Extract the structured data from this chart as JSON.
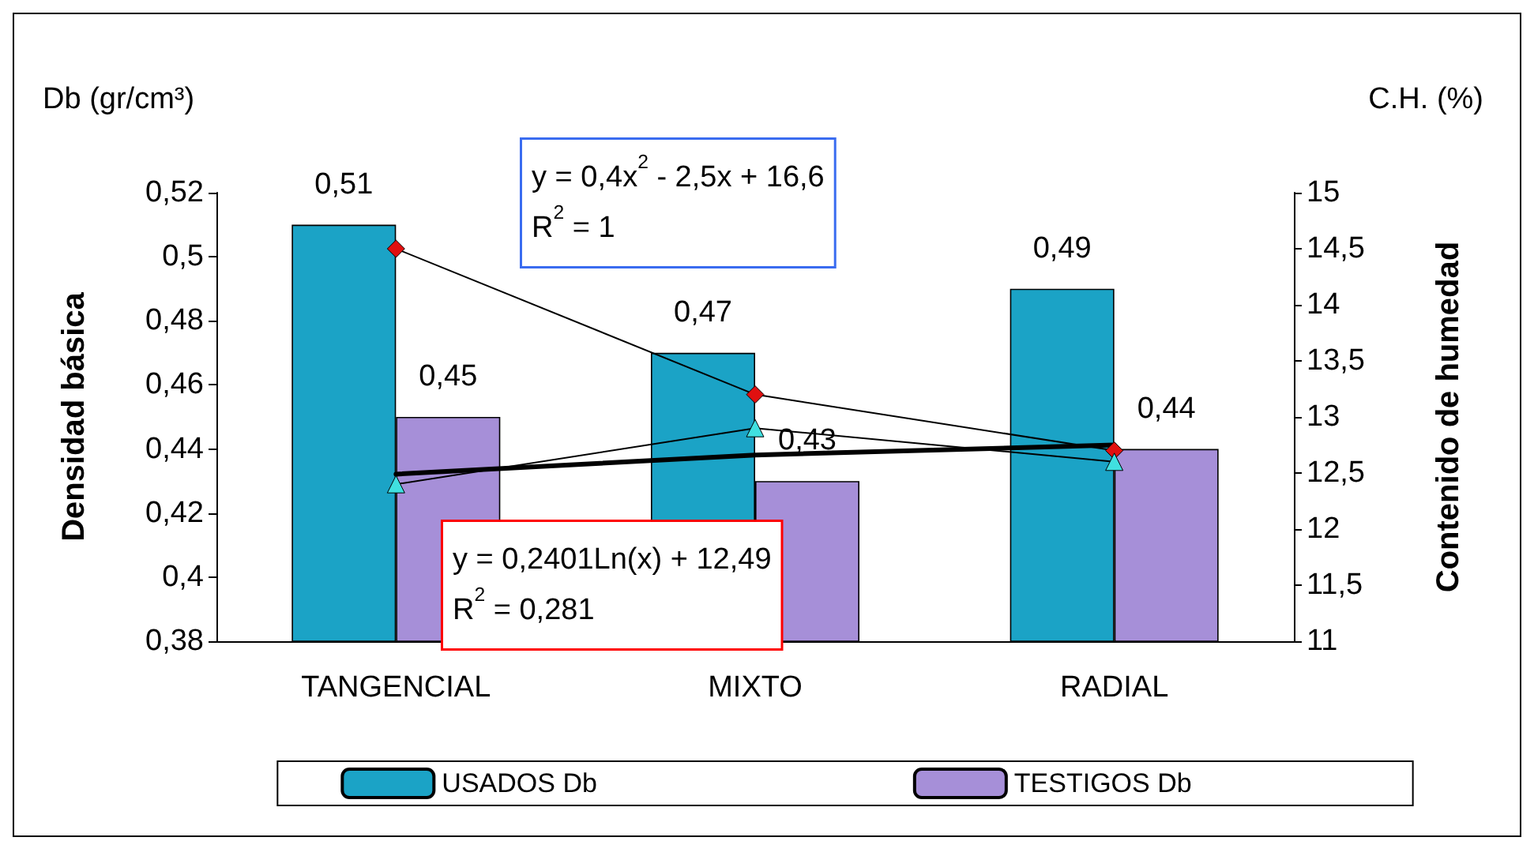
{
  "chart_data": {
    "type": "bar",
    "categories": [
      "TANGENCIAL",
      "MIXTO",
      "RADIAL"
    ],
    "series": [
      {
        "name": "USADOS Db",
        "color": "#1ba3c6",
        "values": [
          0.51,
          0.47,
          0.49
        ],
        "value_labels": [
          "0,51",
          "0,47",
          "0,49"
        ]
      },
      {
        "name": "TESTIGOS Db",
        "color": "#a68fd8",
        "values": [
          0.45,
          0.43,
          0.44
        ],
        "value_labels": [
          "0,45",
          "0,43",
          "0,44"
        ]
      },
      {
        "type": "line",
        "axis": "y2",
        "color": "#000000",
        "colors": [
          "#e01010",
          "#e01010",
          "#e01010"
        ],
        "marker": "diamond",
        "values": [
          14.5,
          13.2,
          12.7
        ]
      },
      {
        "type": "line",
        "axis": "y2",
        "color": "#000000",
        "colors": [
          "#40e0e0",
          "#40e0e0",
          "#40e0e0"
        ],
        "marker": "triangle",
        "values": [
          12.4,
          12.9,
          12.6
        ]
      },
      {
        "type": "line",
        "axis": "y2",
        "color": "#000000",
        "marker": "none",
        "values": [
          12.49,
          12.66,
          12.75
        ]
      }
    ],
    "ylabel": "Densidad básica",
    "y2label": "Contenido de humedad",
    "ylim": [
      0.38,
      0.52
    ],
    "yticks": [
      {
        "value": 0.38,
        "label": "0,38"
      },
      {
        "value": 0.4,
        "label": "0,4"
      },
      {
        "value": 0.42,
        "label": "0,42"
      },
      {
        "value": 0.44,
        "label": "0,44"
      },
      {
        "value": 0.46,
        "label": "0,46"
      },
      {
        "value": 0.48,
        "label": "0,48"
      },
      {
        "value": 0.5,
        "label": "0,5"
      },
      {
        "value": 0.52,
        "label": "0,52"
      }
    ],
    "y2lim": [
      11,
      15
    ],
    "y2ticks": [
      11,
      {
        "value": 11.5,
        "label": "11,5"
      },
      12,
      {
        "value": 12.5,
        "label": "12,5"
      },
      13,
      {
        "value": 13.5,
        "label": "13,5"
      },
      14,
      {
        "value": 14.5,
        "label": "14,5"
      },
      15
    ],
    "annotations": [
      "Db (gr/cm³)",
      "C.H. (%)",
      "y = 0,4x$^{2}$ - 2,5x + 16,6\nR$^{2}$ = 1",
      "y = 0,2401Ln(x) + 12,49\nR$^{2}$ = 0,281"
    ],
    "grid": false,
    "legend": "bottom"
  }
}
